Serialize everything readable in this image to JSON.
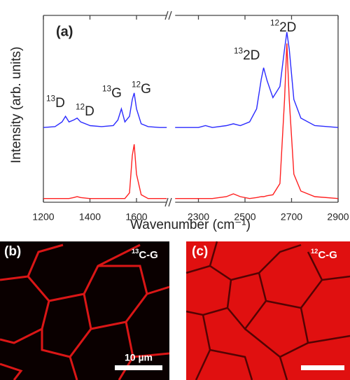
{
  "chart_data": {
    "type": "line",
    "panel_label": "(a)",
    "x_label": "Wavenumber (cm⁻¹)",
    "y_label": "Intensity (arb. units)",
    "xlim": [
      1200,
      2900
    ],
    "x_break": [
      1730,
      2200
    ],
    "ylim": [
      0,
      1
    ],
    "xticks": [
      1200,
      1400,
      1600,
      2300,
      2500,
      2700,
      2900
    ],
    "x": [
      1200,
      1250,
      1280,
      1295,
      1310,
      1330,
      1345,
      1360,
      1400,
      1450,
      1500,
      1520,
      1535,
      1550,
      1570,
      1582,
      1590,
      1600,
      1620,
      1650,
      1700,
      1730,
      1950,
      2200,
      2300,
      2330,
      2360,
      2420,
      2450,
      2480,
      2520,
      2550,
      2570,
      2580,
      2595,
      2620,
      2650,
      2670,
      2680,
      2690,
      2710,
      2740,
      2800,
      2900
    ],
    "series": [
      {
        "color": "#2b2bff",
        "values": [
          0.4,
          0.405,
          0.43,
          0.46,
          0.43,
          0.44,
          0.45,
          0.43,
          0.41,
          0.405,
          0.41,
          0.44,
          0.5,
          0.43,
          0.46,
          0.55,
          0.585,
          0.5,
          0.42,
          0.405,
          0.4,
          0.4,
          null,
          0.4,
          0.4,
          0.41,
          0.4,
          0.41,
          0.42,
          0.41,
          0.43,
          0.5,
          0.66,
          0.72,
          0.65,
          0.56,
          0.62,
          0.82,
          0.91,
          0.82,
          0.55,
          0.45,
          0.41,
          0.4
        ]
      },
      {
        "color": "#ff2020",
        "values": [
          0.02,
          0.02,
          0.02,
          0.02,
          0.02,
          0.025,
          0.03,
          0.025,
          0.02,
          0.02,
          0.02,
          0.02,
          0.02,
          0.02,
          0.05,
          0.25,
          0.31,
          0.15,
          0.04,
          0.02,
          0.02,
          0.02,
          null,
          0.02,
          0.02,
          0.02,
          0.02,
          0.03,
          0.045,
          0.03,
          0.02,
          0.025,
          0.03,
          0.03,
          0.035,
          0.04,
          0.1,
          0.55,
          0.85,
          0.55,
          0.15,
          0.06,
          0.03,
          0.02
        ]
      }
    ],
    "annotations": [
      {
        "sup": "13",
        "text": "D"
      },
      {
        "sup": "12",
        "text": "D"
      },
      {
        "sup": "13",
        "text": "G"
      },
      {
        "sup": "12",
        "text": "G"
      },
      {
        "sup": "13",
        "text": "2D"
      },
      {
        "sup": "12",
        "text": "2D"
      }
    ]
  },
  "panels": [
    {
      "label": "(b)",
      "sup": "13",
      "text": "C-G",
      "scale_bar": "10 µm"
    },
    {
      "label": "(c)",
      "sup": "12",
      "text": "C-G"
    }
  ]
}
